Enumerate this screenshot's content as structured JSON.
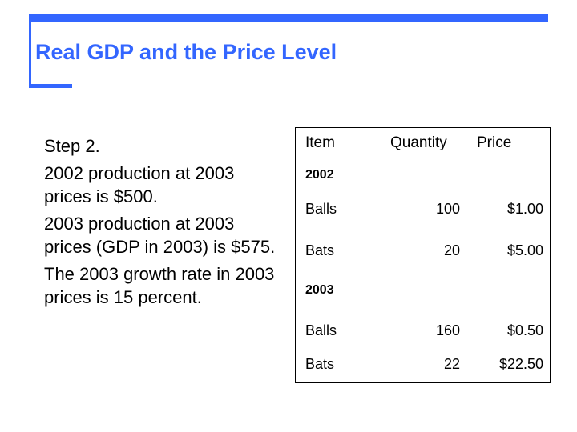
{
  "slide": {
    "title": "Real GDP and the Price Level",
    "paragraphs": [
      "Step 2.",
      "2002 production at 2003 prices is $500.",
      "2003 production at 2003 prices (GDP in 2003) is $575.",
      "The 2003 growth rate in 2003 prices is 15 percent."
    ]
  },
  "table": {
    "headers": {
      "item": "Item",
      "quantity": "Quantity",
      "price": "Price"
    },
    "groups": [
      {
        "year": "2002",
        "rows": [
          {
            "item": "Balls",
            "quantity": "100",
            "price": "$1.00"
          },
          {
            "item": "Bats",
            "quantity": "20",
            "price": "$5.00"
          }
        ]
      },
      {
        "year": "2003",
        "rows": [
          {
            "item": "Balls",
            "quantity": "160",
            "price": "$0.50"
          },
          {
            "item": "Bats",
            "quantity": "22",
            "price": "$22.50"
          }
        ]
      }
    ]
  },
  "colors": {
    "accent": "#3366ff",
    "text": "#000000",
    "background": "#ffffff"
  }
}
